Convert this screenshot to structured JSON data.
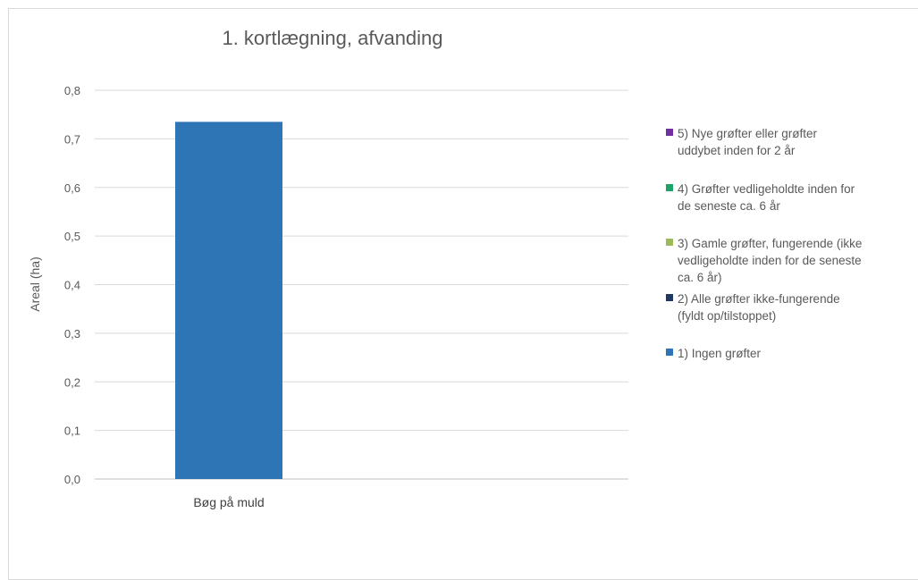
{
  "chart_data": {
    "type": "bar",
    "title": "1. kortlægning, afvanding",
    "ylabel": "Areal (ha)",
    "xlabel": "",
    "ylim": [
      0,
      0.8
    ],
    "yticks": [
      "0,0",
      "0,1",
      "0,2",
      "0,3",
      "0,4",
      "0,5",
      "0,6",
      "0,7",
      "0,8"
    ],
    "categories": [
      "Bøg på muld"
    ],
    "series": [
      {
        "name": "5) Nye grøfter eller grøfter uddybet inden for 2 år",
        "color": "#7030a0",
        "values": [
          0
        ]
      },
      {
        "name": "4) Grøfter vedligeholdte inden for de seneste ca. 6 år",
        "color": "#1fa36a",
        "values": [
          0
        ]
      },
      {
        "name": "3) Gamle grøfter, fungerende (ikke vedligeholdte inden for de seneste ca. 6 år)",
        "color": "#9bbb59",
        "values": [
          0
        ]
      },
      {
        "name": "2) Alle grøfter ikke-fungerende (fyldt op/tilstoppet)",
        "color": "#1f3864",
        "values": [
          0
        ]
      },
      {
        "name": "1) Ingen grøfter",
        "color": "#2e75b6",
        "values": [
          0.735
        ]
      }
    ],
    "grid": true,
    "legend_position": "right"
  },
  "legend_display": [
    "5) Nye grøfter eller grøfter\nuddybet inden for 2 år",
    "4) Grøfter vedligeholdte inden for\nde seneste ca. 6 år",
    "3) Gamle grøfter, fungerende (ikke\nvedligeholdte inden for de seneste\nca. 6 år)",
    "2) Alle grøfter ikke-fungerende\n(fyldt op/tilstoppet)",
    "1) Ingen grøfter"
  ]
}
